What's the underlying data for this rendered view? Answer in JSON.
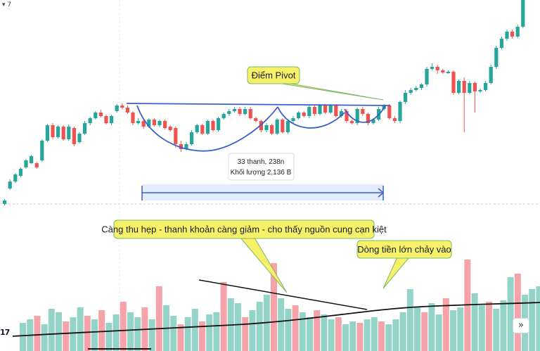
{
  "corner_label": "▾ 7",
  "logo_text": "17",
  "nav_button": "»",
  "colors": {
    "up": "#26a69a",
    "down": "#ef5350",
    "vol_up": "#94d4c8",
    "vol_down": "#f5a3a8",
    "trend": "#3a5fc8",
    "callout_bg": "#f7f16a",
    "callout_border": "#7ab86a",
    "range_fill": "#dbe6f8",
    "range_line": "#3a5fc8"
  },
  "annotations": {
    "pivot": "Điểm Pivot",
    "contraction": "Càng thu hẹp - thanh khoản càng giảm - cho thấy nguồn cung cạn kiệt",
    "inflow": "Dòng tiền lớn chảy vào",
    "range_line1": "33 thanh, 238n",
    "range_line2": "Khối lượng 2,136 B"
  },
  "chart_data": {
    "type": "candlestick",
    "description_free": true,
    "candles": [
      [
        0,
        290,
        285,
        292,
        283
      ],
      [
        1,
        268,
        258,
        270,
        255
      ],
      [
        2,
        258,
        248,
        260,
        246
      ],
      [
        3,
        250,
        240,
        252,
        238
      ],
      [
        4,
        238,
        228,
        240,
        226
      ],
      [
        5,
        232,
        222,
        233,
        220
      ],
      [
        6,
        232,
        238,
        240,
        230
      ],
      [
        7,
        228,
        200,
        230,
        198
      ],
      [
        8,
        200,
        178,
        202,
        176
      ],
      [
        9,
        178,
        195,
        198,
        175
      ],
      [
        10,
        195,
        180,
        197,
        178
      ],
      [
        11,
        180,
        198,
        200,
        178
      ],
      [
        12,
        198,
        180,
        200,
        177
      ],
      [
        13,
        182,
        205,
        208,
        180
      ],
      [
        14,
        202,
        190,
        204,
        188
      ],
      [
        15,
        190,
        175,
        192,
        172
      ],
      [
        16,
        175,
        168,
        178,
        166
      ],
      [
        17,
        168,
        160,
        170,
        158
      ],
      [
        18,
        160,
        165,
        167,
        156
      ],
      [
        19,
        165,
        175,
        177,
        163
      ],
      [
        20,
        175,
        165,
        178,
        163
      ],
      [
        21,
        158,
        150,
        160,
        148
      ],
      [
        22,
        150,
        153,
        155,
        147
      ],
      [
        23,
        153,
        160,
        162,
        150
      ],
      [
        24,
        160,
        175,
        178,
        158
      ],
      [
        25,
        175,
        172,
        177,
        168
      ],
      [
        26,
        172,
        180,
        183,
        170
      ],
      [
        27,
        180,
        170,
        182,
        168
      ],
      [
        28,
        170,
        178,
        180,
        168
      ],
      [
        29,
        178,
        172,
        181,
        170
      ],
      [
        30,
        172,
        182,
        184,
        170
      ],
      [
        31,
        180,
        185,
        187,
        178
      ],
      [
        32,
        182,
        205,
        210,
        180
      ],
      [
        33,
        205,
        212,
        216,
        200
      ],
      [
        34,
        212,
        205,
        214,
        202
      ],
      [
        35,
        205,
        188,
        207,
        185
      ],
      [
        36,
        188,
        178,
        190,
        176
      ],
      [
        37,
        178,
        190,
        192,
        176
      ],
      [
        38,
        190,
        172,
        192,
        170
      ],
      [
        39,
        172,
        185,
        187,
        170
      ],
      [
        40,
        185,
        168,
        187,
        166
      ],
      [
        41,
        168,
        162,
        170,
        160
      ],
      [
        42,
        162,
        158,
        165,
        155
      ],
      [
        43,
        158,
        155,
        160,
        152
      ],
      [
        44,
        155,
        162,
        165,
        152
      ],
      [
        45,
        162,
        155,
        164,
        152
      ],
      [
        46,
        155,
        168,
        170,
        152
      ],
      [
        47,
        168,
        172,
        174,
        166
      ],
      [
        48,
        172,
        185,
        188,
        170
      ],
      [
        49,
        185,
        178,
        188,
        175
      ],
      [
        50,
        178,
        190,
        192,
        176
      ],
      [
        51,
        190,
        170,
        192,
        168
      ],
      [
        52,
        170,
        188,
        190,
        168
      ],
      [
        53,
        188,
        172,
        190,
        170
      ],
      [
        54,
        172,
        168,
        176,
        165
      ],
      [
        55,
        168,
        160,
        170,
        158
      ],
      [
        56,
        160,
        165,
        167,
        158
      ],
      [
        57,
        165,
        152,
        168,
        150
      ],
      [
        58,
        152,
        162,
        165,
        150
      ],
      [
        59,
        162,
        150,
        164,
        148
      ],
      [
        60,
        150,
        160,
        162,
        148
      ],
      [
        61,
        160,
        150,
        162,
        148
      ],
      [
        62,
        150,
        165,
        167,
        148
      ],
      [
        63,
        165,
        158,
        167,
        155
      ],
      [
        64,
        158,
        172,
        175,
        155
      ],
      [
        65,
        172,
        175,
        177,
        170
      ],
      [
        66,
        175,
        155,
        178,
        153
      ],
      [
        67,
        155,
        162,
        165,
        152
      ],
      [
        68,
        162,
        175,
        178,
        160
      ],
      [
        69,
        175,
        170,
        177,
        168
      ],
      [
        70,
        170,
        155,
        172,
        152
      ],
      [
        71,
        155,
        150,
        157,
        148
      ],
      [
        72,
        150,
        168,
        170,
        148
      ],
      [
        73,
        168,
        172,
        175,
        165
      ],
      [
        74,
        172,
        145,
        175,
        143
      ],
      [
        75,
        145,
        132,
        148,
        128
      ],
      [
        76,
        132,
        128,
        135,
        125
      ],
      [
        77,
        128,
        125,
        130,
        122
      ],
      [
        78,
        125,
        120,
        128,
        118
      ],
      [
        79,
        120,
        98,
        123,
        95
      ],
      [
        80,
        98,
        95,
        100,
        90
      ],
      [
        81,
        95,
        100,
        105,
        92
      ],
      [
        82,
        100,
        103,
        105,
        98
      ],
      [
        83,
        103,
        102,
        105,
        100
      ],
      [
        84,
        102,
        132,
        135,
        100
      ],
      [
        85,
        132,
        115,
        134,
        113
      ],
      [
        86,
        115,
        132,
        188,
        110
      ],
      [
        87,
        132,
        118,
        134,
        115
      ],
      [
        88,
        118,
        130,
        160,
        116
      ],
      [
        89,
        130,
        128,
        132,
        126
      ],
      [
        90,
        128,
        118,
        130,
        115
      ],
      [
        91,
        118,
        95,
        120,
        92
      ],
      [
        92,
        95,
        68,
        98,
        65
      ],
      [
        93,
        68,
        55,
        70,
        52
      ],
      [
        94,
        55,
        45,
        58,
        42
      ],
      [
        95,
        45,
        52,
        55,
        42
      ],
      [
        96,
        52,
        38,
        54,
        35
      ],
      [
        97,
        38,
        0,
        40,
        0
      ]
    ],
    "volumes": [
      [
        0,
        40,
        "up"
      ],
      [
        1,
        45,
        "up"
      ],
      [
        2,
        50,
        "down"
      ],
      [
        3,
        38,
        "up"
      ],
      [
        4,
        60,
        "up"
      ],
      [
        5,
        55,
        "up"
      ],
      [
        6,
        42,
        "down"
      ],
      [
        7,
        48,
        "up"
      ],
      [
        8,
        62,
        "up"
      ],
      [
        9,
        50,
        "down"
      ],
      [
        10,
        45,
        "up"
      ],
      [
        11,
        58,
        "down"
      ],
      [
        12,
        40,
        "up"
      ],
      [
        13,
        52,
        "up"
      ],
      [
        14,
        70,
        "down"
      ],
      [
        15,
        55,
        "up"
      ],
      [
        16,
        48,
        "up"
      ],
      [
        17,
        62,
        "down"
      ],
      [
        18,
        45,
        "up"
      ],
      [
        19,
        92,
        "down"
      ],
      [
        20,
        65,
        "up"
      ],
      [
        21,
        50,
        "up"
      ],
      [
        22,
        38,
        "down"
      ],
      [
        23,
        48,
        "up"
      ],
      [
        24,
        60,
        "up"
      ],
      [
        25,
        42,
        "down"
      ],
      [
        26,
        52,
        "up"
      ],
      [
        27,
        55,
        "up"
      ],
      [
        28,
        98,
        "down"
      ],
      [
        29,
        75,
        "up"
      ],
      [
        30,
        68,
        "up"
      ],
      [
        31,
        48,
        "down"
      ],
      [
        32,
        58,
        "up"
      ],
      [
        33,
        70,
        "up"
      ],
      [
        34,
        80,
        "up"
      ],
      [
        35,
        125,
        "down"
      ],
      [
        36,
        75,
        "up"
      ],
      [
        37,
        60,
        "up"
      ],
      [
        38,
        65,
        "down"
      ],
      [
        39,
        55,
        "up"
      ],
      [
        40,
        48,
        "up"
      ],
      [
        41,
        58,
        "down"
      ],
      [
        42,
        52,
        "up"
      ],
      [
        43,
        45,
        "up"
      ],
      [
        44,
        48,
        "down"
      ],
      [
        45,
        38,
        "up"
      ],
      [
        46,
        42,
        "up"
      ],
      [
        47,
        40,
        "down"
      ],
      [
        48,
        45,
        "up"
      ],
      [
        49,
        48,
        "up"
      ],
      [
        50,
        42,
        "down"
      ],
      [
        51,
        38,
        "up"
      ],
      [
        52,
        45,
        "up"
      ],
      [
        53,
        55,
        "up"
      ],
      [
        54,
        88,
        "up"
      ],
      [
        55,
        62,
        "up"
      ],
      [
        56,
        55,
        "down"
      ],
      [
        57,
        68,
        "up"
      ],
      [
        58,
        52,
        "up"
      ],
      [
        59,
        75,
        "down"
      ],
      [
        60,
        58,
        "up"
      ],
      [
        61,
        62,
        "up"
      ],
      [
        62,
        130,
        "down"
      ],
      [
        63,
        82,
        "up"
      ],
      [
        64,
        65,
        "up"
      ],
      [
        65,
        70,
        "down"
      ],
      [
        66,
        60,
        "up"
      ],
      [
        67,
        72,
        "up"
      ],
      [
        68,
        105,
        "up"
      ],
      [
        69,
        110,
        "down"
      ],
      [
        70,
        80,
        "up"
      ],
      [
        71,
        88,
        "up"
      ],
      [
        72,
        92,
        "up"
      ],
      [
        73,
        85,
        "up"
      ],
      [
        74,
        88,
        "up"
      ],
      [
        75,
        70,
        "up"
      ]
    ]
  }
}
